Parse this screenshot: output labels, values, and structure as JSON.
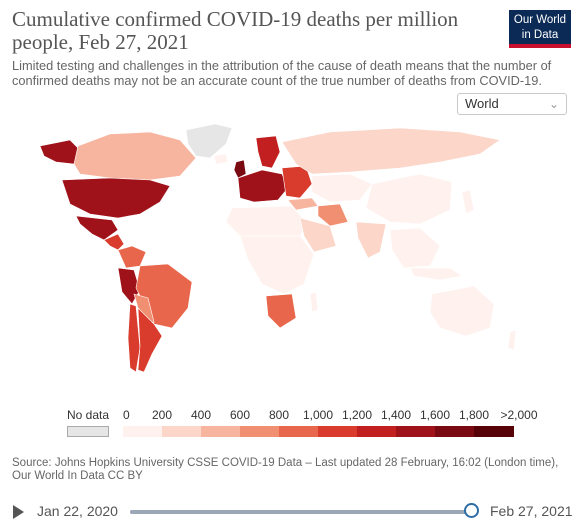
{
  "header": {
    "title": "Cumulative confirmed COVID-19 deaths per million people, Feb 27, 2021",
    "subtitle": "Limited testing and challenges in the attribution of the cause of death means that the number of confirmed deaths may not be an accurate count of the true number of deaths from COVID-19.",
    "logo": "Our World in Data"
  },
  "region_select": {
    "value": "World"
  },
  "legend": {
    "no_data_label": "No data",
    "ticks": [
      "0",
      "200",
      "400",
      "600",
      "800",
      "1,000",
      "1,200",
      "1,400",
      "1,600",
      "1,800",
      ">2,000"
    ],
    "no_data_color": "#e6e6e6",
    "colors": [
      "#fff2ee",
      "#fbd6c9",
      "#f7b49e",
      "#f18f72",
      "#e8664b",
      "#d93c2c",
      "#c21f21",
      "#a0121a",
      "#7a0a12",
      "#560008"
    ]
  },
  "source": "Source: Johns Hopkins University CSSE COVID-19 Data – Last updated 28 February, 16:02 (London time), Our World In Data CC BY",
  "timeline": {
    "start": "Jan 22, 2020",
    "end": "Feb 27, 2021",
    "progress": 1.0
  }
}
